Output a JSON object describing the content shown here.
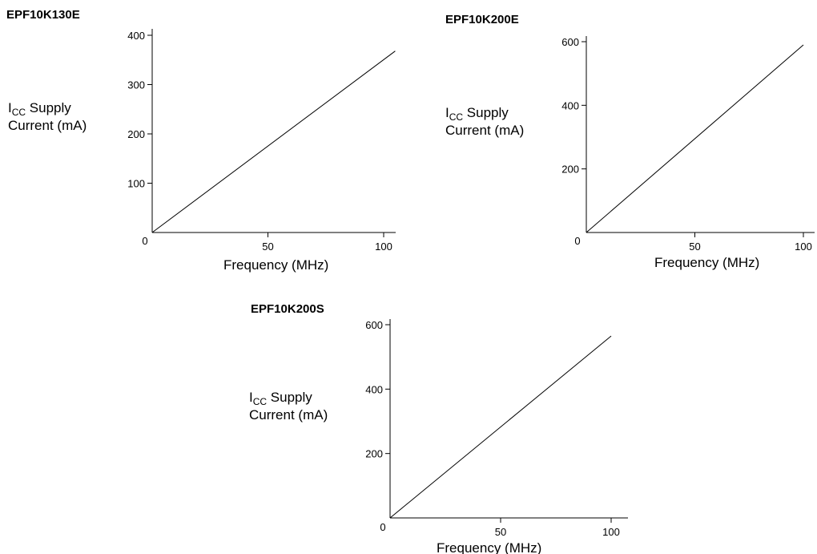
{
  "chart_data": [
    {
      "type": "line",
      "title": "EPF10K130E",
      "xlabel": "Frequency (MHz)",
      "ylabel_main": "I",
      "ylabel_sub": "CC",
      "ylabel_rest": " Supply",
      "ylabel_line2": "Current (mA)",
      "xlim": [
        0,
        105
      ],
      "ylim": [
        0,
        410
      ],
      "xticks": [
        0,
        50,
        100
      ],
      "yticks": [
        100,
        200,
        300,
        400
      ],
      "series": [
        {
          "x": [
            0,
            105
          ],
          "y": [
            0,
            368
          ]
        }
      ]
    },
    {
      "type": "line",
      "title": "EPF10K200E",
      "xlabel": "Frequency (MHz)",
      "ylabel_main": "I",
      "ylabel_sub": "CC",
      "ylabel_rest": " Supply",
      "ylabel_line2": "Current (mA)",
      "xlim": [
        0,
        105
      ],
      "ylim": [
        0,
        620
      ],
      "xticks": [
        0,
        50,
        100
      ],
      "yticks": [
        200,
        400,
        600
      ],
      "series": [
        {
          "x": [
            0,
            100
          ],
          "y": [
            0,
            590
          ]
        }
      ]
    },
    {
      "type": "line",
      "title": "EPF10K200S",
      "xlabel": "Frequency (MHz)",
      "ylabel_main": "I",
      "ylabel_sub": "CC",
      "ylabel_rest": " Supply",
      "ylabel_line2": "Current (mA)",
      "xlim": [
        0,
        105
      ],
      "ylim": [
        0,
        620
      ],
      "xticks": [
        0,
        50,
        100
      ],
      "yticks": [
        200,
        400,
        600
      ],
      "series": [
        {
          "x": [
            0,
            100
          ],
          "y": [
            0,
            565
          ]
        }
      ]
    }
  ]
}
